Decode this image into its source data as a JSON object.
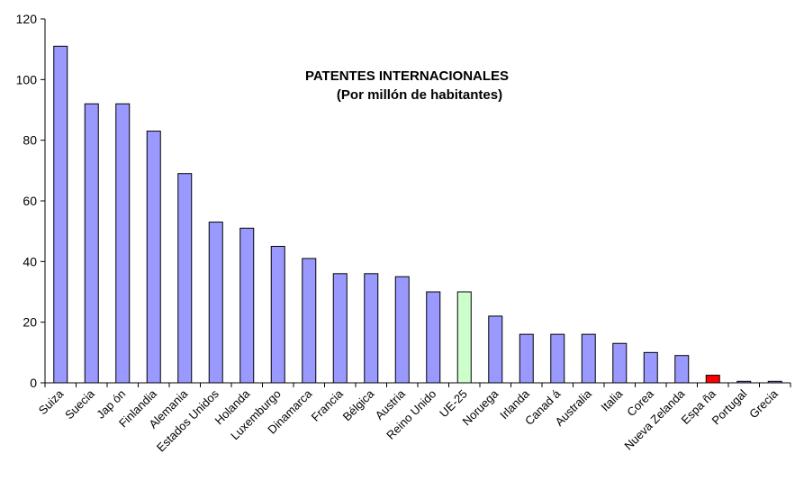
{
  "chart_data": {
    "type": "bar",
    "title": "PATENTES INTERNACIONALES",
    "subtitle": "(Por millón de habitantes)",
    "categories": [
      "Suiza",
      "Suecia",
      "Jap ón",
      "Finlandia",
      "Alemania",
      "Estados Unidos",
      "Holanda",
      "Luxemburgo",
      "Dinamarca",
      "Francia",
      "Bélgica",
      "Austria",
      "Reino Unido",
      "UE-25",
      "Noruega",
      "Irlanda",
      "Canad á",
      "Australia",
      "Italia",
      "Corea",
      "Nueva Zelanda",
      "Espa ña",
      "Portugal",
      "Grecia"
    ],
    "values": [
      111,
      92,
      92,
      83,
      69,
      53,
      51,
      45,
      41,
      36,
      36,
      35,
      30,
      30,
      22,
      16,
      16,
      16,
      13,
      10,
      9,
      2.5,
      0.5,
      0.5
    ],
    "colors": [
      "#9999ff",
      "#9999ff",
      "#9999ff",
      "#9999ff",
      "#9999ff",
      "#9999ff",
      "#9999ff",
      "#9999ff",
      "#9999ff",
      "#9999ff",
      "#9999ff",
      "#9999ff",
      "#9999ff",
      "#ccffcc",
      "#9999ff",
      "#9999ff",
      "#9999ff",
      "#9999ff",
      "#9999ff",
      "#9999ff",
      "#9999ff",
      "#ff0000",
      "#9999ff",
      "#9999ff"
    ],
    "ylim": [
      0,
      120
    ],
    "yticks": [
      "0",
      "20",
      "40",
      "60",
      "80",
      "100",
      "120"
    ],
    "xlabel": "",
    "ylabel": "",
    "grid": false,
    "legend": "none"
  }
}
